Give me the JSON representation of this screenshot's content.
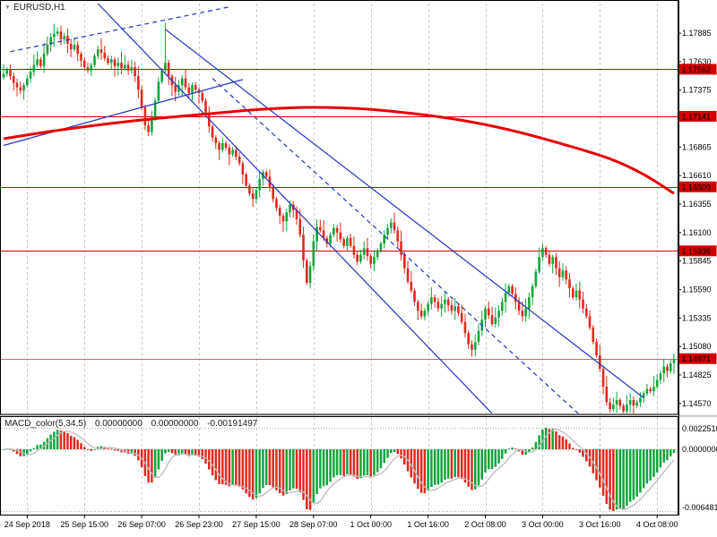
{
  "header": {
    "symbol_label": "EURUSD,H1"
  },
  "colors": {
    "up": "#11a53a",
    "down": "#e0281e",
    "ma": "#e60000",
    "trend": "#2233bb",
    "level": "#d40000",
    "current_line": "#cc6666",
    "badge_bg": "#d40000",
    "badge_text": "#ffffff",
    "grid": "#c9c9c9",
    "axis_text": "#000000",
    "macd_signal": "#bcbcbc",
    "border": "#000000",
    "separator": "#d4d0c8"
  },
  "chart_data": {
    "type": "candlestick",
    "symbol": "EURUSD",
    "timeframe": "H1",
    "title": "EURUSD,H1",
    "ylim": [
      1.1448,
      1.1815
    ],
    "y_ticks": [
      1.17885,
      1.1763,
      1.17375,
      1.1712,
      1.16865,
      1.1661,
      1.16355,
      1.161,
      1.15845,
      1.1559,
      1.15335,
      1.1508,
      1.14825,
      1.1457
    ],
    "levels": [
      1.17562,
      1.17141,
      1.16509,
      1.15936
    ],
    "current_price": 1.14971,
    "x_ticks": [
      {
        "i": 7,
        "label": "24 Sep 2018"
      },
      {
        "i": 24,
        "label": "25 Sep 15:00"
      },
      {
        "i": 41,
        "label": "26 Sep 07:00"
      },
      {
        "i": 58,
        "label": "26 Sep 23:00"
      },
      {
        "i": 75,
        "label": "27 Sep 15:00"
      },
      {
        "i": 92,
        "label": "28 Sep 07:00"
      },
      {
        "i": 109,
        "label": "1 Oct 00:00"
      },
      {
        "i": 126,
        "label": "1 Oct 16:00"
      },
      {
        "i": 143,
        "label": "2 Oct 08:00"
      },
      {
        "i": 160,
        "label": "3 Oct 00:00"
      },
      {
        "i": 177,
        "label": "3 Oct 16:00"
      },
      {
        "i": 194,
        "label": "4 Oct 08:00"
      }
    ],
    "closes": [
      1.1752,
      1.1756,
      1.175,
      1.1744,
      1.174,
      1.1737,
      1.1742,
      1.1748,
      1.1754,
      1.176,
      1.1765,
      1.1759,
      1.177,
      1.1778,
      1.1785,
      1.1788,
      1.179,
      1.1783,
      1.1786,
      1.1779,
      1.1774,
      1.1778,
      1.177,
      1.1764,
      1.1758,
      1.1755,
      1.176,
      1.1768,
      1.1774,
      1.1771,
      1.1766,
      1.1762,
      1.1765,
      1.1759,
      1.1762,
      1.1757,
      1.176,
      1.1755,
      1.1758,
      1.175,
      1.1738,
      1.1722,
      1.1706,
      1.17,
      1.1712,
      1.1728,
      1.1745,
      1.1755,
      1.1762,
      1.175,
      1.1742,
      1.1736,
      1.1742,
      1.1748,
      1.174,
      1.1735,
      1.1742,
      1.1738,
      1.1735,
      1.1728,
      1.1716,
      1.1705,
      1.1695,
      1.169,
      1.1684,
      1.169,
      1.1686,
      1.168,
      1.1684,
      1.1678,
      1.1672,
      1.1662,
      1.1652,
      1.1645,
      1.164,
      1.1648,
      1.1658,
      1.1664,
      1.166,
      1.165,
      1.164,
      1.1632,
      1.1625,
      1.162,
      1.1628,
      1.1635,
      1.163,
      1.1622,
      1.1608,
      1.1585,
      1.1565,
      1.158,
      1.1602,
      1.1615,
      1.1612,
      1.1605,
      1.16,
      1.1608,
      1.1614,
      1.161,
      1.1604,
      1.1598,
      1.1605,
      1.1598,
      1.159,
      1.1584,
      1.159,
      1.1596,
      1.1589,
      1.1582,
      1.1588,
      1.1594,
      1.16,
      1.1608,
      1.1614,
      1.1619,
      1.1612,
      1.1602,
      1.159,
      1.1578,
      1.1566,
      1.1558,
      1.1548,
      1.154,
      1.1535,
      1.154,
      1.1546,
      1.1552,
      1.1548,
      1.1542,
      1.1546,
      1.155,
      1.1545,
      1.154,
      1.1544,
      1.1538,
      1.153,
      1.152,
      1.151,
      1.1505,
      1.1512,
      1.1522,
      1.1532,
      1.1542,
      1.1536,
      1.1528,
      1.1534,
      1.154,
      1.1548,
      1.1556,
      1.1562,
      1.1555,
      1.1548,
      1.154,
      1.1535,
      1.1542,
      1.1552,
      1.1562,
      1.1575,
      1.1588,
      1.1596,
      1.159,
      1.1582,
      1.1588,
      1.1578,
      1.157,
      1.1576,
      1.1568,
      1.156,
      1.1552,
      1.1558,
      1.155,
      1.1542,
      1.1535,
      1.1525,
      1.1512,
      1.15,
      1.1488,
      1.1472,
      1.1458,
      1.1452,
      1.1456,
      1.146,
      1.1455,
      1.145,
      1.1456,
      1.146,
      1.1455,
      1.1458,
      1.1462,
      1.1466,
      1.147,
      1.1468,
      1.1472,
      1.1478,
      1.1484,
      1.149,
      1.1486,
      1.1493,
      1.1497
    ],
    "spike": {
      "i": 48,
      "high": 1.1798
    },
    "ma": {
      "points": [
        [
          0,
          1.1694
        ],
        [
          15,
          1.1701
        ],
        [
          30,
          1.1707
        ],
        [
          45,
          1.1712
        ],
        [
          60,
          1.1716
        ],
        [
          75,
          1.172
        ],
        [
          90,
          1.1722
        ],
        [
          105,
          1.1721
        ],
        [
          120,
          1.1717
        ],
        [
          135,
          1.1711
        ],
        [
          150,
          1.1702
        ],
        [
          165,
          1.169
        ],
        [
          180,
          1.1676
        ],
        [
          190,
          1.1662
        ],
        [
          199,
          1.1645
        ]
      ]
    },
    "trendlines": [
      {
        "style": "dashed",
        "points": [
          [
            2,
            1.1772
          ],
          [
            67,
            1.1812
          ]
        ]
      },
      {
        "style": "solid",
        "points": [
          [
            28,
            1.1815
          ],
          [
            145,
            1.1448
          ]
        ]
      },
      {
        "style": "solid",
        "points": [
          [
            48,
            1.1792
          ],
          [
            190,
            1.1462
          ]
        ]
      },
      {
        "style": "dashed",
        "points": [
          [
            62,
            1.1748
          ],
          [
            172,
            1.1444
          ]
        ]
      },
      {
        "style": "solid",
        "points": [
          [
            0,
            1.1688
          ],
          [
            71,
            1.1747
          ]
        ]
      }
    ],
    "macd": {
      "name": "MACD_color(5,34,5)",
      "values": [
        "0.00000000",
        "0.00000000",
        "-0.00191497"
      ],
      "fast": 5,
      "slow": 34,
      "signal_period": 5,
      "scale_max": 0.002251,
      "scale_min": -0.006481,
      "axis_labels": [
        "0.0022510",
        "0.0000000",
        "-0.0064810"
      ]
    }
  }
}
